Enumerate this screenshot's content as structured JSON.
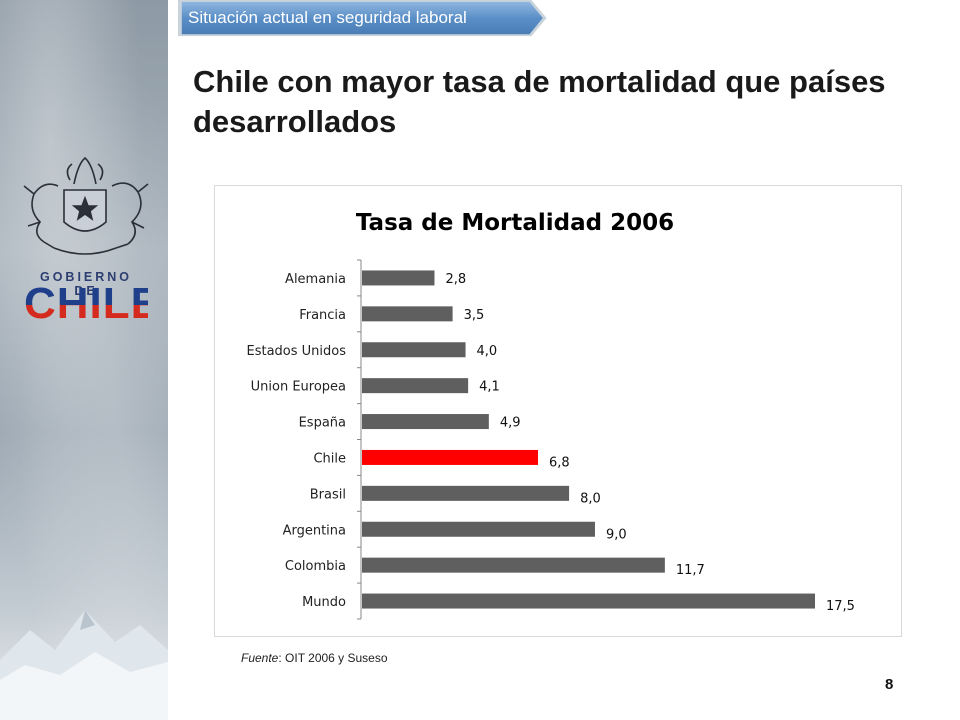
{
  "header": {
    "section_tab": "Situación actual en seguridad laboral",
    "title": "Chile con mayor tasa de mortalidad que países desarrollados"
  },
  "logo": {
    "line1": "GOBIERNO DE",
    "line2": "CHILE"
  },
  "colors": {
    "bar_default": "#5f5f5f",
    "bar_highlight": "#ff0000",
    "tab_fill": "#5b8fc7",
    "logo_blue": "#1f3f8b",
    "logo_red": "#d52b1e"
  },
  "chart_data": {
    "type": "bar",
    "orientation": "horizontal",
    "title": "Tasa de Mortalidad 2006",
    "categories": [
      "Alemania",
      "Francia",
      "Estados Unidos",
      "Union Europea",
      "España",
      "Chile",
      "Brasil",
      "Argentina",
      "Colombia",
      "Mundo"
    ],
    "values": [
      2.8,
      3.5,
      4.0,
      4.1,
      4.9,
      6.8,
      8.0,
      9.0,
      11.7,
      17.5
    ],
    "value_labels": [
      "2,8",
      "3,5",
      "4,0",
      "4,1",
      "4,9",
      "6,8",
      "8,0",
      "9,0",
      "11,7",
      "17,5"
    ],
    "highlight": "Chile",
    "xlim": [
      0,
      17.5
    ],
    "grid": false,
    "legend": "none"
  },
  "footer": {
    "source_italic": "Fuente",
    "source_rest": ": OIT 2006 y Suseso",
    "page_number": "8"
  }
}
